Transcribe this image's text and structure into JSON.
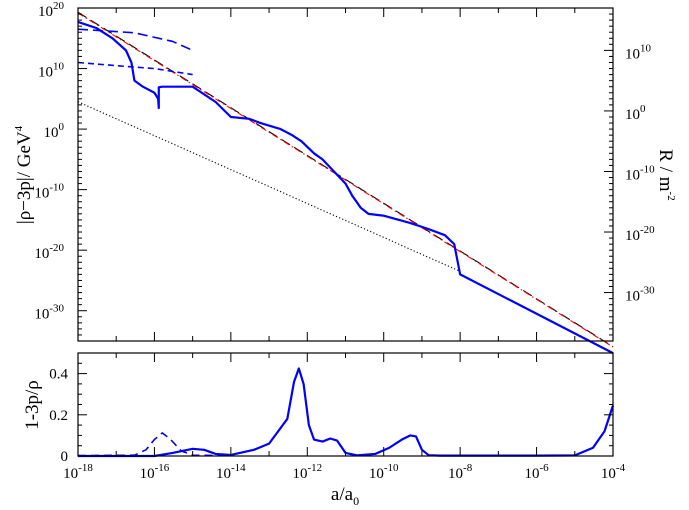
{
  "chart_data": [
    {
      "type": "line",
      "panel": "top",
      "xscale": "log",
      "yscale": "log",
      "xlim": [
        1e-18,
        0.0001
      ],
      "ylim": [
        1e-35,
        1e+20
      ],
      "ylabel": "|ρ−3p|/ GeV",
      "ylabel_sup": "4",
      "y2label": "R / m",
      "y2label_sup": "-2",
      "y2lim": [
        1e-38,
        1e+17
      ],
      "yticks_left": [
        {
          "base": "10",
          "exp": "20",
          "value": 1e+20
        },
        {
          "base": "10",
          "exp": "10",
          "value": 10000000000.0
        },
        {
          "base": "10",
          "exp": "0",
          "value": 1
        },
        {
          "base": "10",
          "exp": "-10",
          "value": 1e-10
        },
        {
          "base": "10",
          "exp": "-20",
          "value": 1e-20
        },
        {
          "base": "10",
          "exp": "-30",
          "value": 1e-30
        }
      ],
      "yticks_right": [
        {
          "base": "10",
          "exp": "10",
          "value": 10000000000.0
        },
        {
          "base": "10",
          "exp": "0",
          "value": 1
        },
        {
          "base": "10",
          "exp": "-10",
          "value": 1e-10
        },
        {
          "base": "10",
          "exp": "-20",
          "value": 1e-20
        },
        {
          "base": "10",
          "exp": "-30",
          "value": 1e-30
        }
      ],
      "grid": false,
      "series": [
        {
          "style": "black long-dash",
          "color": "#000000",
          "x": [
            1e-18,
            0.0001
          ],
          "y": [
            2e+19,
            1.2e-36
          ]
        },
        {
          "style": "red dash-dot",
          "color": "#ff0000",
          "x": [
            1e-18,
            0.0001
          ],
          "y": [
            1.5e+19,
            1e-36
          ]
        },
        {
          "style": "black dotted",
          "color": "#000000",
          "x": [
            1e-18,
            1e-08
          ],
          "y": [
            32000.0,
            3.2e-24
          ]
        },
        {
          "style": "blue long-dash",
          "color": "#0000ff",
          "x": [
            1e-18,
            3e-17,
            3e-16,
            1e-15
          ],
          "y": [
            3.2e+16,
            8000000000000000.0,
            300000000000000.0,
            10000000000000.0
          ]
        },
        {
          "style": "blue short-dash",
          "color": "#0000ff",
          "x": [
            1e-18,
            1e-17,
            1e-16,
            1e-15
          ],
          "y": [
            100000000000.0,
            30000000000.0,
            10000000000.0,
            1000000000.0
          ]
        },
        {
          "style": "blue solid",
          "color": "#0000ff",
          "x": [
            1e-18,
            3e-18,
            8e-18,
            1.8e-17,
            2.5e-17,
            3e-17,
            5e-17,
            1e-16,
            1.25e-16,
            1.3e-16,
            1.3e-16,
            1.6e-16,
            3e-16,
            1e-15,
            4e-15,
            1e-14,
            3e-14,
            6e-14,
            2e-13,
            4e-13,
            7e-13,
            1.5e-12,
            2.5e-12,
            5e-12,
            1e-11,
            1.5e-11,
            2.5e-11,
            4e-11,
            1e-10,
            5e-10,
            1.5e-09,
            4e-09,
            7e-09,
            1e-08,
            0.0001
          ],
          "y": [
            5e+17,
            5e+16,
            1000000000000000.0,
            10000000000000.0,
            100000000000.0,
            100000000.0,
            10000000.0,
            1000000.0,
            100000.0,
            3000.0,
            8000000.0,
            10000000.0,
            10000000.0,
            10000000.0,
            30000.0,
            100.0,
            50.0,
            10.0,
            1.0,
            0.1,
            0.01,
            0.0001,
            1e-05,
            1e-07,
            1e-09,
            1e-11,
            1e-13,
            1e-14,
            5e-15,
            3e-16,
            3e-17,
            3e-18,
            1e-19,
            1e-24,
            1e-37
          ]
        }
      ]
    },
    {
      "type": "line",
      "panel": "bottom",
      "xscale": "log",
      "xlim": [
        1e-18,
        0.0001
      ],
      "ylim": [
        0,
        0.5
      ],
      "xlabel": "a/a",
      "xlabel_sub": "0",
      "ylabel": "1-3p/ρ",
      "grid": false,
      "xticks": [
        {
          "base": "10",
          "exp": "-18",
          "value": 1e-18
        },
        {
          "base": "10",
          "exp": "-16",
          "value": 1e-16
        },
        {
          "base": "10",
          "exp": "-14",
          "value": 1e-14
        },
        {
          "base": "10",
          "exp": "-12",
          "value": 1e-12
        },
        {
          "base": "10",
          "exp": "-10",
          "value": 1e-10
        },
        {
          "base": "10",
          "exp": "-8",
          "value": 1e-08
        },
        {
          "base": "10",
          "exp": "-6",
          "value": 1e-06
        },
        {
          "base": "10",
          "exp": "-4",
          "value": 0.0001
        }
      ],
      "yticks": [
        "0",
        "0.2",
        "0.4"
      ],
      "yticks_values": [
        0,
        0.2,
        0.4
      ],
      "series": [
        {
          "style": "blue dashed",
          "color": "#0000ff",
          "x": [
            1e-18,
            3e-17,
            6e-17,
            1e-16,
            1.6e-16,
            2.5e-16,
            5e-16,
            1e-15,
            1e-14
          ],
          "y": [
            0.002,
            0.004,
            0.03,
            0.08,
            0.112,
            0.085,
            0.025,
            0.004,
            0.002
          ]
        },
        {
          "style": "blue solid",
          "color": "#0000ff",
          "x": [
            1e-18,
            1e-16,
            3e-16,
            1e-15,
            2e-15,
            4e-15,
            1e-14,
            4e-14,
            1e-13,
            3e-13,
            4.5e-13,
            6e-13,
            8e-13,
            1.1e-12,
            1.5e-12,
            2.5e-12,
            4e-12,
            6e-12,
            1e-11,
            2e-11,
            6e-11,
            1.4e-10,
            3e-10,
            5e-10,
            7e-10,
            1e-09,
            1.5e-09,
            3e-09,
            1e-08,
            1e-06,
            1e-05,
            3e-05,
            6e-05,
            0.0001
          ],
          "y": [
            0.0,
            0.0,
            0.015,
            0.035,
            0.03,
            0.01,
            0.005,
            0.03,
            0.06,
            0.18,
            0.36,
            0.425,
            0.35,
            0.15,
            0.08,
            0.07,
            0.085,
            0.075,
            0.015,
            0.003,
            0.01,
            0.04,
            0.08,
            0.1,
            0.095,
            0.03,
            0.004,
            0.002,
            0.002,
            0.002,
            0.003,
            0.04,
            0.12,
            0.245
          ]
        }
      ]
    }
  ]
}
